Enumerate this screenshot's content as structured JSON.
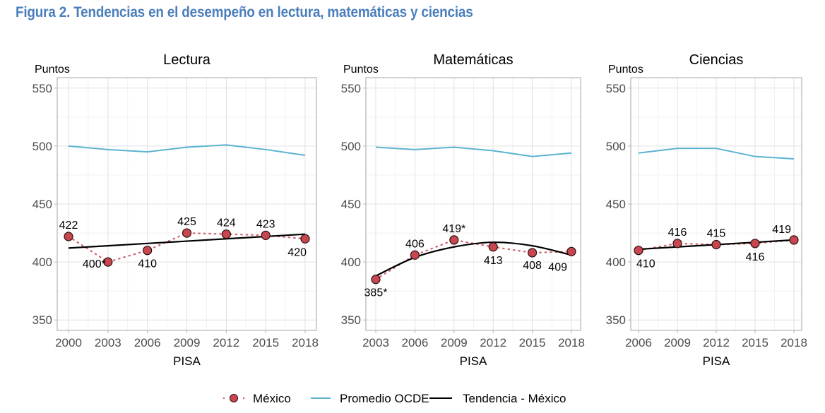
{
  "figure": {
    "title": "Figura 2. Tendencias en el desempeño en lectura, matemáticas y ciencias",
    "title_color": "#4a7ebb"
  },
  "colors": {
    "mexico": "#c8464f",
    "mexico_dots": "#d0606a",
    "oecd": "#5bb3d0",
    "trend": "#000000",
    "grid": "#e0e0e0",
    "panel_border": "#b3b3b3"
  },
  "legend": {
    "position": "bottom",
    "items": [
      {
        "label": "México",
        "type": "point-dotted"
      },
      {
        "label": "Promedio OCDE",
        "type": "line-oecd"
      },
      {
        "label": "Tendencia - México",
        "type": "line-trend"
      }
    ]
  },
  "chart_data": [
    {
      "type": "line",
      "title": "Lectura",
      "ylabel": "Puntos",
      "xlabel": "PISA",
      "ylim": [
        341,
        559
      ],
      "yticks": [
        350,
        400,
        450,
        500,
        550
      ],
      "x": [
        2000,
        2003,
        2006,
        2009,
        2012,
        2015,
        2018
      ],
      "xticks": [
        "2000",
        "2003",
        "2006",
        "2009",
        "2012",
        "2015",
        "2018"
      ],
      "grid": true,
      "series": [
        {
          "name": "México",
          "values": [
            422,
            400,
            410,
            425,
            424,
            423,
            420
          ],
          "labels": [
            "422",
            "400*",
            "410",
            "425",
            "424",
            "423",
            "420"
          ],
          "label_pos": [
            "above",
            "below-left",
            "below",
            "above",
            "above",
            "above",
            "below-left"
          ]
        },
        {
          "name": "Promedio OCDE",
          "values": [
            500,
            497,
            495,
            499,
            501,
            497,
            492
          ]
        },
        {
          "name": "Tendencia - México",
          "values": [
            412,
            414,
            416,
            418,
            420,
            422,
            424
          ]
        }
      ]
    },
    {
      "type": "line",
      "title": "Matemáticas",
      "ylabel": "Puntos",
      "xlabel": "PISA",
      "ylim": [
        341,
        559
      ],
      "yticks": [
        350,
        400,
        450,
        500,
        550
      ],
      "x": [
        2003,
        2006,
        2009,
        2012,
        2015,
        2018
      ],
      "xticks": [
        "2003",
        "2006",
        "2009",
        "2012",
        "2015",
        "2018"
      ],
      "grid": true,
      "series": [
        {
          "name": "México",
          "values": [
            385,
            406,
            419,
            413,
            408,
            409
          ],
          "labels": [
            "385*",
            "406",
            "419*",
            "413",
            "408",
            "409"
          ],
          "label_pos": [
            "below",
            "above",
            "above",
            "below",
            "below-left",
            "below-left"
          ]
        },
        {
          "name": "Promedio OCDE",
          "values": [
            499,
            497,
            499,
            496,
            491,
            494
          ]
        },
        {
          "name": "Tendencia - México",
          "values": [
            388,
            404,
            413,
            417,
            414,
            406
          ],
          "smooth": true
        }
      ]
    },
    {
      "type": "line",
      "title": "Ciencias",
      "ylabel": "Puntos",
      "xlabel": "PISA",
      "ylim": [
        341,
        559
      ],
      "yticks": [
        350,
        400,
        450,
        500,
        550
      ],
      "x": [
        2006,
        2009,
        2012,
        2015,
        2018
      ],
      "xticks": [
        "2006",
        "2009",
        "2012",
        "2015",
        "2018"
      ],
      "grid": true,
      "series": [
        {
          "name": "México",
          "values": [
            410,
            416,
            415,
            416,
            419
          ],
          "labels": [
            "410",
            "416",
            "415",
            "416",
            "419"
          ],
          "label_pos": [
            "below-right",
            "above",
            "above",
            "below",
            "above-left"
          ]
        },
        {
          "name": "Promedio OCDE",
          "values": [
            494,
            498,
            498,
            491,
            489
          ]
        },
        {
          "name": "Tendencia - México",
          "values": [
            411,
            413,
            415,
            417,
            419
          ]
        }
      ]
    }
  ]
}
